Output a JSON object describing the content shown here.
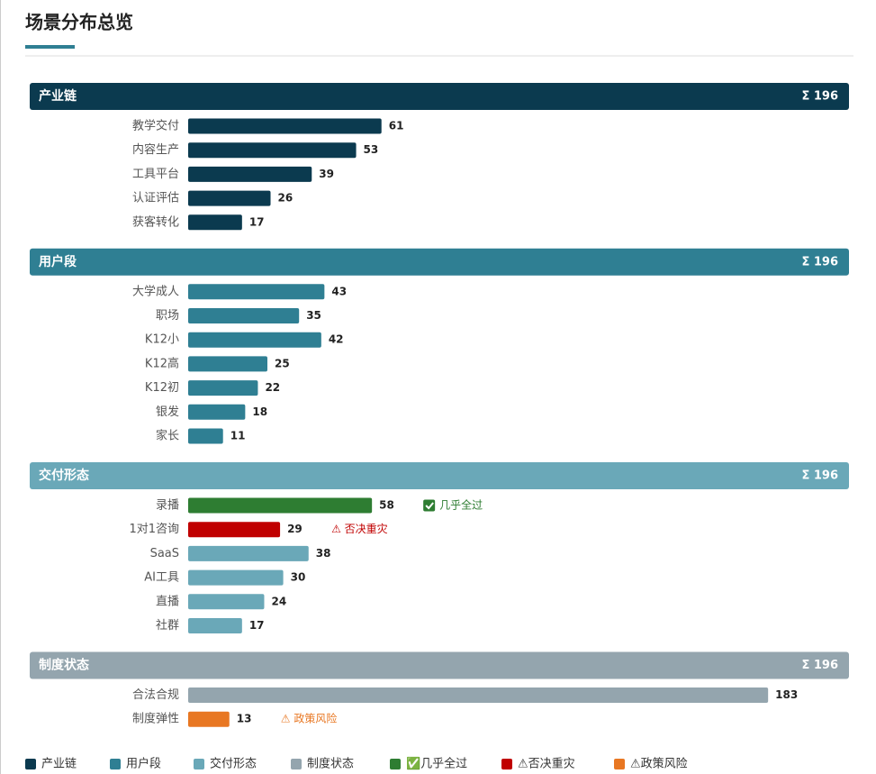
{
  "title": "场景分布总览",
  "sections": [
    {
      "name": "产业链",
      "total": "Σ 196",
      "color": "#0b3a4f",
      "items": [
        {
          "label": "教学交付",
          "value": 61
        },
        {
          "label": "内容生产",
          "value": 53
        },
        {
          "label": "工具平台",
          "value": 39
        },
        {
          "label": "认证评估",
          "value": 26
        },
        {
          "label": "获客转化",
          "value": 17
        }
      ]
    },
    {
      "name": "用户段",
      "total": "Σ 196",
      "color": "#2f7f93",
      "items": [
        {
          "label": "大学成人",
          "value": 43
        },
        {
          "label": "职场",
          "value": 35
        },
        {
          "label": "K12小",
          "value": 42
        },
        {
          "label": "K12高",
          "value": 25
        },
        {
          "label": "K12初",
          "value": 22
        },
        {
          "label": "银发",
          "value": 18
        },
        {
          "label": "家长",
          "value": 11
        }
      ]
    },
    {
      "name": "交付形态",
      "total": "Σ 196",
      "color": "#6aa8b8",
      "items": [
        {
          "label": "录播",
          "value": 58,
          "color": "#2e7d32",
          "note": "几乎全过",
          "note_icon": "check",
          "note_color": "#2e7d32"
        },
        {
          "label": "1对1咨询",
          "value": 29,
          "color": "#c00000",
          "note": "⚠ 否决重灾",
          "note_color": "#c00000"
        },
        {
          "label": "SaaS",
          "value": 38
        },
        {
          "label": "AI工具",
          "value": 30
        },
        {
          "label": "直播",
          "value": 24
        },
        {
          "label": "社群",
          "value": 17
        }
      ]
    },
    {
      "name": "制度状态",
      "total": "Σ 196",
      "color": "#94a5ae",
      "items": [
        {
          "label": "合法合规",
          "value": 183
        },
        {
          "label": "制度弹性",
          "value": 13,
          "color": "#e87722",
          "note": "⚠ 政策风险",
          "note_color": "#e87722"
        }
      ]
    }
  ],
  "legend": [
    {
      "label": "产业链",
      "color": "#0b3a4f"
    },
    {
      "label": "用户段",
      "color": "#2f7f93"
    },
    {
      "label": "交付形态",
      "color": "#6aa8b8"
    },
    {
      "label": "制度状态",
      "color": "#94a5ae"
    },
    {
      "label": "✅几乎全过",
      "color": "#2e7d32"
    },
    {
      "label": "⚠否决重灾",
      "color": "#c00000"
    },
    {
      "label": "⚠政策风险",
      "color": "#e87722"
    }
  ]
}
